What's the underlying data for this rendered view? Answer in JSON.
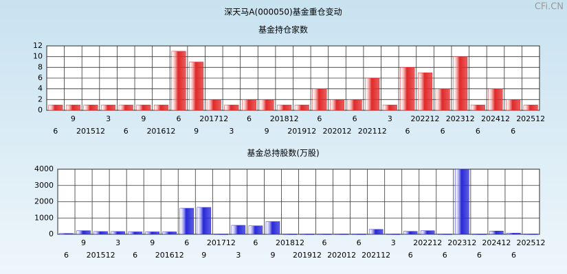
{
  "title": "深天马A(000050)基金重仓变动",
  "watermark": "CFi.CN",
  "chart_data": [
    {
      "type": "bar",
      "title": "基金持仓家数",
      "categories": [
        "6",
        "9",
        "201512",
        "3",
        "6",
        "9",
        "201612",
        "6",
        "9",
        "201712",
        "3",
        "6",
        "9",
        "201812",
        "201912",
        "6",
        "202012",
        "6",
        "202112",
        "3",
        "6",
        "202212",
        "6",
        "202312",
        "6",
        "202412",
        "6",
        "202512"
      ],
      "values": [
        1,
        1,
        1,
        1,
        1,
        1,
        1,
        11,
        9,
        2,
        1,
        2,
        2,
        1,
        1,
        4,
        2,
        2,
        6,
        1,
        8,
        7,
        4,
        10,
        1,
        4,
        2,
        1
      ],
      "color": "#e02828",
      "ylim": [
        0,
        12
      ],
      "yticks": [
        0,
        2,
        4,
        6,
        8,
        10,
        12
      ],
      "grid": true
    },
    {
      "type": "bar",
      "title": "基金总持股数(万股)",
      "categories": [
        "6",
        "9",
        "201512",
        "3",
        "6",
        "9",
        "201612",
        "6",
        "9",
        "201712",
        "3",
        "6",
        "9",
        "201812",
        "201912",
        "6",
        "202012",
        "6",
        "202112",
        "3",
        "6",
        "202212",
        "6",
        "202312",
        "6",
        "202412",
        "6",
        "202512"
      ],
      "values": [
        50,
        220,
        170,
        170,
        150,
        150,
        150,
        1600,
        1650,
        20,
        550,
        520,
        780,
        20,
        20,
        20,
        20,
        20,
        300,
        20,
        180,
        220,
        20,
        4000,
        20,
        200,
        70,
        20
      ],
      "color": "#2828d8",
      "ylim": [
        0,
        4000
      ],
      "yticks": [
        0,
        1000,
        2000,
        3000,
        4000
      ],
      "grid": true
    }
  ]
}
